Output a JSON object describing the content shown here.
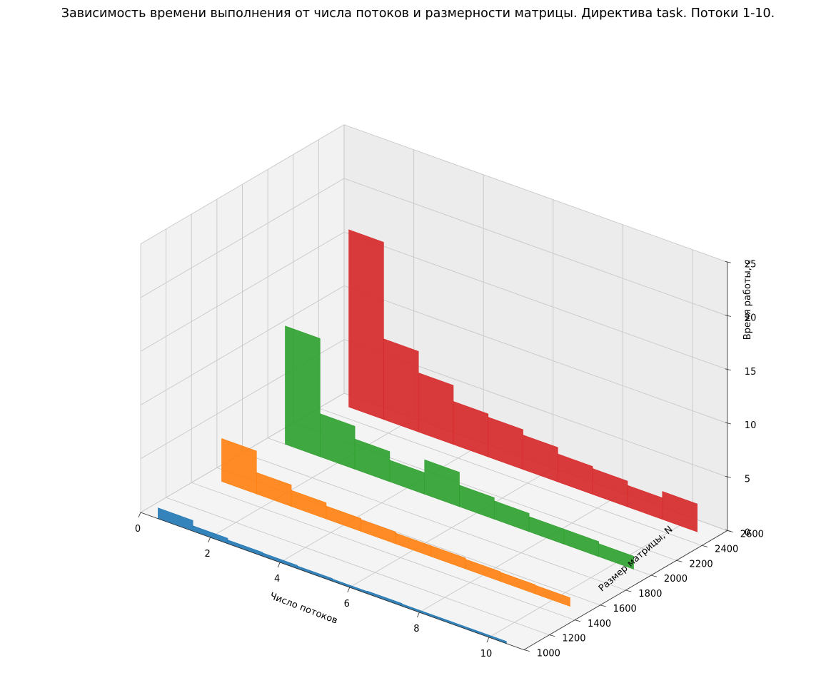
{
  "chart_data": {
    "type": "bar",
    "title": "Зависимость времени выполнения от числа потоков и размерности матрицы. Директива task. Потоки 1-10.",
    "xlabel": "Число потоков",
    "ylabel": "Размер матрицы, N",
    "zlabel": "Время работы, с",
    "x": [
      1,
      2,
      3,
      4,
      5,
      6,
      7,
      8,
      9,
      10
    ],
    "xticks": [
      "0",
      "2",
      "4",
      "6",
      "8",
      "10"
    ],
    "yticks": [
      "1000",
      "1200",
      "1400",
      "1600",
      "1800",
      "2000",
      "2200",
      "2400",
      "2600"
    ],
    "zticks": [
      "0",
      "5",
      "10",
      "15",
      "20",
      "25"
    ],
    "xlim": [
      0,
      11
    ],
    "ylim": [
      1000,
      2600
    ],
    "zlim": [
      0,
      25
    ],
    "grid": true,
    "series": [
      {
        "matrix_size": 1000,
        "color": "#1f77b4",
        "values": [
          1.0,
          0.5,
          0.35,
          0.3,
          0.25,
          0.2,
          0.25,
          0.2,
          0.2,
          0.2
        ]
      },
      {
        "matrix_size": 1500,
        "color": "#ff7f0e",
        "values": [
          4.0,
          2.0,
          1.5,
          1.2,
          1.1,
          1.0,
          1.0,
          0.9,
          0.85,
          0.8
        ]
      },
      {
        "matrix_size": 2000,
        "color": "#2ca02c",
        "values": [
          11.0,
          4.0,
          2.8,
          2.0,
          3.2,
          2.0,
          1.7,
          1.4,
          1.4,
          1.2
        ]
      },
      {
        "matrix_size": 2500,
        "color": "#d62728",
        "values": [
          16.5,
          7.5,
          5.5,
          4.0,
          3.7,
          3.2,
          2.6,
          2.4,
          2.0,
          2.6
        ]
      }
    ]
  }
}
